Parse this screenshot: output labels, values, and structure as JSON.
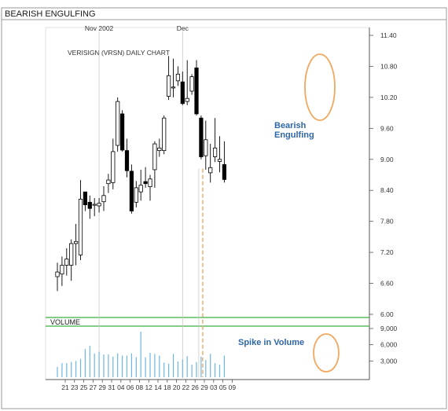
{
  "header": {
    "title": "BEARISH ENGULFING"
  },
  "chart_data": {
    "type": "candlestick",
    "title": "VERISIGN (VRSN) DAILY CHART",
    "month_labels": [
      {
        "label": "Nov 2002",
        "at_index": 9
      },
      {
        "label": "Dec",
        "at_index": 27
      }
    ],
    "x_tick_labels": [
      "21",
      "23",
      "25",
      "27",
      "29",
      "31",
      "04",
      "06",
      "08",
      "12",
      "14",
      "18",
      "20",
      "22",
      "26",
      "29",
      "03",
      "05",
      "09"
    ],
    "x_tick_at_index": [
      0,
      2,
      4,
      6,
      8,
      10,
      12,
      14,
      16,
      18,
      20,
      22,
      24,
      26,
      28,
      30,
      32,
      34,
      36
    ],
    "price_axis": {
      "ticks": [
        "11.40",
        "10.80",
        "10.20",
        "9.60",
        "9.00",
        "8.40",
        "7.80",
        "7.20",
        "6.60",
        "6.00"
      ],
      "ylim": [
        6.0,
        11.4
      ]
    },
    "volume_axis": {
      "label": "VOLUME",
      "ticks": [
        "9,000",
        "6,000",
        "3,000"
      ],
      "ylim": [
        0,
        9000
      ]
    },
    "candles": [
      {
        "o": 6.73,
        "h": 7.0,
        "l": 6.45,
        "c": 6.82
      },
      {
        "o": 6.78,
        "h": 7.12,
        "l": 6.55,
        "c": 6.95
      },
      {
        "o": 6.95,
        "h": 7.28,
        "l": 6.75,
        "c": 7.07
      },
      {
        "o": 6.95,
        "h": 7.45,
        "l": 6.65,
        "c": 7.37
      },
      {
        "o": 7.37,
        "h": 7.75,
        "l": 6.95,
        "c": 7.41
      },
      {
        "o": 7.15,
        "h": 8.6,
        "l": 7.05,
        "c": 8.23
      },
      {
        "o": 8.37,
        "h": 8.37,
        "l": 8.0,
        "c": 8.12
      },
      {
        "o": 8.17,
        "h": 8.3,
        "l": 7.85,
        "c": 8.05
      },
      {
        "o": 8.12,
        "h": 8.25,
        "l": 7.9,
        "c": 8.13
      },
      {
        "o": 8.1,
        "h": 8.25,
        "l": 7.97,
        "c": 8.15
      },
      {
        "o": 8.18,
        "h": 8.48,
        "l": 8.0,
        "c": 8.3
      },
      {
        "o": 8.53,
        "h": 8.72,
        "l": 8.35,
        "c": 8.6
      },
      {
        "o": 8.55,
        "h": 9.4,
        "l": 8.42,
        "c": 9.15
      },
      {
        "o": 9.27,
        "h": 10.2,
        "l": 9.15,
        "c": 10.12
      },
      {
        "o": 9.88,
        "h": 9.95,
        "l": 9.15,
        "c": 9.18
      },
      {
        "o": 9.17,
        "h": 9.4,
        "l": 8.65,
        "c": 8.78
      },
      {
        "o": 8.77,
        "h": 8.9,
        "l": 7.95,
        "c": 8.0
      },
      {
        "o": 8.17,
        "h": 8.58,
        "l": 8.07,
        "c": 8.45
      },
      {
        "o": 8.37,
        "h": 8.8,
        "l": 8.2,
        "c": 8.5
      },
      {
        "o": 8.57,
        "h": 8.85,
        "l": 8.45,
        "c": 8.53
      },
      {
        "o": 8.47,
        "h": 8.7,
        "l": 8.2,
        "c": 8.62
      },
      {
        "o": 8.8,
        "h": 9.35,
        "l": 8.45,
        "c": 9.3
      },
      {
        "o": 9.17,
        "h": 9.4,
        "l": 9.05,
        "c": 9.22
      },
      {
        "o": 9.17,
        "h": 9.85,
        "l": 9.1,
        "c": 9.8
      },
      {
        "o": 10.22,
        "h": 11.0,
        "l": 10.15,
        "c": 10.62
      },
      {
        "o": 10.4,
        "h": 10.95,
        "l": 10.2,
        "c": 10.4
      },
      {
        "o": 10.52,
        "h": 10.8,
        "l": 10.42,
        "c": 10.65
      },
      {
        "o": 10.5,
        "h": 10.7,
        "l": 10.05,
        "c": 10.08
      },
      {
        "o": 10.12,
        "h": 10.92,
        "l": 10.05,
        "c": 10.18
      },
      {
        "o": 10.32,
        "h": 10.65,
        "l": 10.25,
        "c": 10.6
      },
      {
        "o": 10.77,
        "h": 10.92,
        "l": 9.85,
        "c": 9.88
      },
      {
        "o": 9.8,
        "h": 9.85,
        "l": 9.0,
        "c": 9.05
      },
      {
        "o": 9.07,
        "h": 9.75,
        "l": 8.8,
        "c": 9.38
      },
      {
        "o": 8.74,
        "h": 9.3,
        "l": 8.55,
        "c": 8.84
      },
      {
        "o": 9.05,
        "h": 9.8,
        "l": 8.95,
        "c": 9.22
      },
      {
        "o": 8.96,
        "h": 9.45,
        "l": 8.75,
        "c": 9.0
      },
      {
        "o": 8.9,
        "h": 9.35,
        "l": 8.55,
        "c": 8.61
      }
    ],
    "volumes": [
      1900,
      2600,
      2600,
      2800,
      3000,
      3400,
      5200,
      5800,
      4400,
      4700,
      4200,
      4200,
      3800,
      4400,
      4000,
      4000,
      4400,
      3700,
      8400,
      3700,
      4500,
      4300,
      4000,
      2700,
      2500,
      4300,
      2900,
      3300,
      3900,
      2300,
      2800,
      3800,
      3200,
      4300,
      2600,
      2300,
      4000
    ],
    "annotations": [
      {
        "text": "Bearish",
        "text2": "Engulfing"
      },
      {
        "text": "Spike in Volume"
      }
    ],
    "grid": false,
    "colors": {
      "up_fill": "#ffffff",
      "down_fill": "#000000",
      "volume_bar": "#6bb7e6",
      "highlight": "#f0a860",
      "annotation_text": "#2f66a6",
      "volume_band": "#3cb043",
      "month_line": "#c8c8c8"
    }
  }
}
